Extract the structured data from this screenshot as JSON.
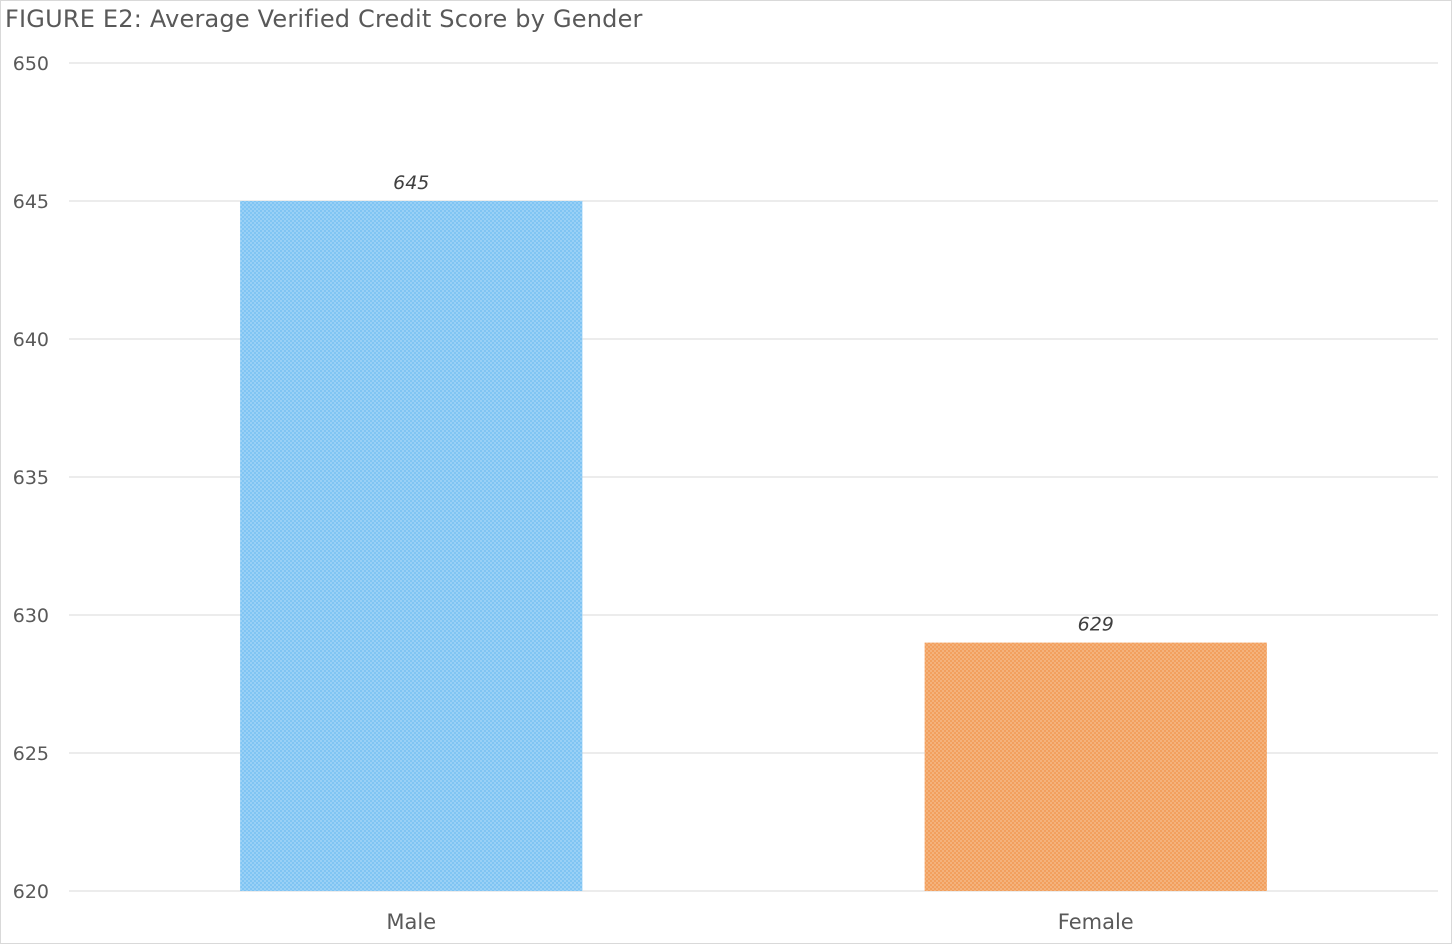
{
  "chart_data": {
    "type": "bar",
    "title": "FIGURE E2: Average Verified Credit Score by Gender",
    "xlabel": "",
    "ylabel": "",
    "categories": [
      "Male",
      "Female"
    ],
    "values": [
      645,
      629
    ],
    "data_labels": [
      "645",
      "629"
    ],
    "ylim": [
      620,
      650
    ],
    "yticks": [
      620,
      625,
      630,
      635,
      640,
      645,
      650
    ],
    "grid": true,
    "legend": "none",
    "colors": [
      "#7dc3f3",
      "#f29d5a"
    ],
    "pattern": "fine crosshatch"
  }
}
